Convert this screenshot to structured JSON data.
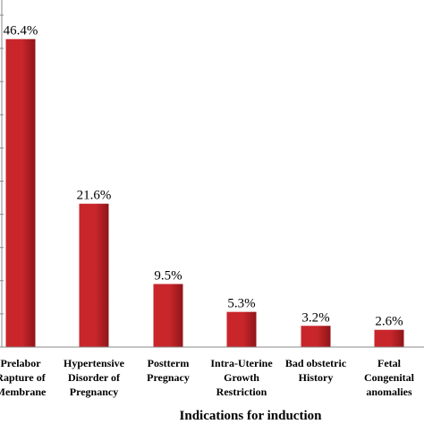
{
  "chart_data": {
    "type": "bar",
    "xlabel": "Indications for induction",
    "ylabel": "",
    "ylim": [
      0,
      50
    ],
    "grid": false,
    "categories": [
      "Prelabor Rapture of Membrane",
      "Hypertensive Disorder of Pregnancy",
      "Postterm Pregnacy",
      "Intra-Uterine Growth Restriction",
      "Bad obstetric History",
      "Fetal Congenital anomalies"
    ],
    "category_lines": [
      [
        "Prelabor",
        "Rapture of",
        "Membrane"
      ],
      [
        "Hypertensive",
        "Disorder of",
        "Pregnancy"
      ],
      [
        "Postterm",
        "Pregnacy"
      ],
      [
        "Intra-Uterine",
        "Growth",
        "Restriction"
      ],
      [
        "Bad obstetric",
        "History"
      ],
      [
        "Fetal",
        "Congenital",
        "anomalies"
      ]
    ],
    "values": [
      46.4,
      21.6,
      9.5,
      5.3,
      3.2,
      2.6
    ],
    "value_labels": [
      "46.4%",
      "21.6%",
      "9.5%",
      "5.3%",
      "3.2%",
      "2.6%"
    ],
    "colors": {
      "bar": "#c8262b",
      "bar_dark": "#8f1519",
      "axis": "#8a8a8a"
    }
  }
}
